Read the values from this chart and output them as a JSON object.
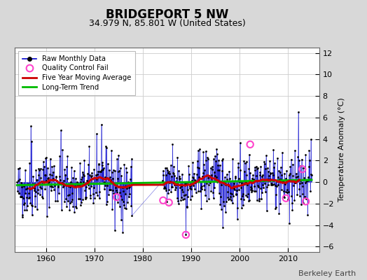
{
  "title": "BRIDGEPORT 5 NW",
  "subtitle": "34.979 N, 85.801 W (United States)",
  "ylabel": "Temperature Anomaly (°C)",
  "xlim": [
    1953.5,
    2016.5
  ],
  "ylim": [
    -6.5,
    12.5
  ],
  "yticks": [
    -6,
    -4,
    -2,
    0,
    2,
    4,
    6,
    8,
    10,
    12
  ],
  "xticks": [
    1960,
    1970,
    1980,
    1990,
    2000,
    2010
  ],
  "bg_color": "#d8d8d8",
  "plot_bg_color": "#ffffff",
  "line_color": "#0000cc",
  "dot_color": "#000000",
  "ma_color": "#cc0000",
  "trend_color": "#00bb00",
  "qc_color": "#ff44cc",
  "watermark": "Berkeley Earth",
  "start_year": 1954,
  "end_year": 2015,
  "seed": 42,
  "gap_start": 1977.75,
  "gap_end": 1984.0,
  "trend_slope": 0.008,
  "trend_intercept": -0.05
}
